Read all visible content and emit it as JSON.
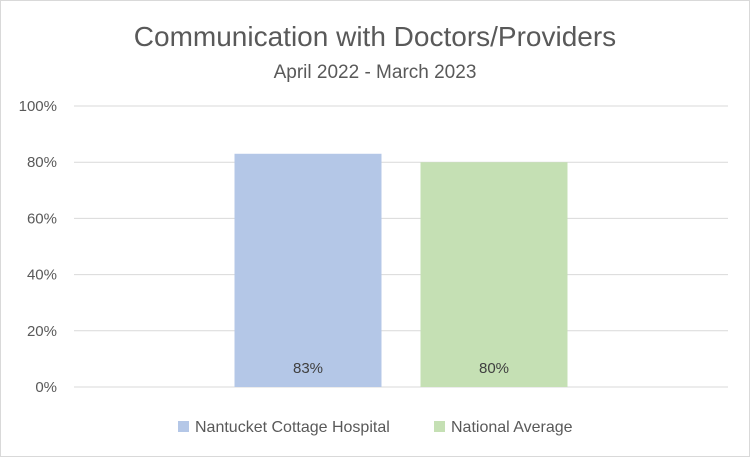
{
  "chart_data": {
    "type": "bar",
    "title": "Communication with Doctors/Providers",
    "subtitle": "April 2022 - March 2023",
    "categories": [
      "Nantucket Cottage Hospital",
      "National Average"
    ],
    "values": [
      83,
      80
    ],
    "data_labels": [
      "83%",
      "80%"
    ],
    "ylim": [
      0,
      100
    ],
    "yticks": [
      0,
      20,
      40,
      60,
      80,
      100
    ],
    "ytick_labels": [
      "0%",
      "20%",
      "40%",
      "60%",
      "80%",
      "100%"
    ],
    "grid": true,
    "legend_position": "bottom",
    "colors": [
      "#b4c7e7",
      "#c5e0b4"
    ],
    "xlabel": "",
    "ylabel": ""
  }
}
